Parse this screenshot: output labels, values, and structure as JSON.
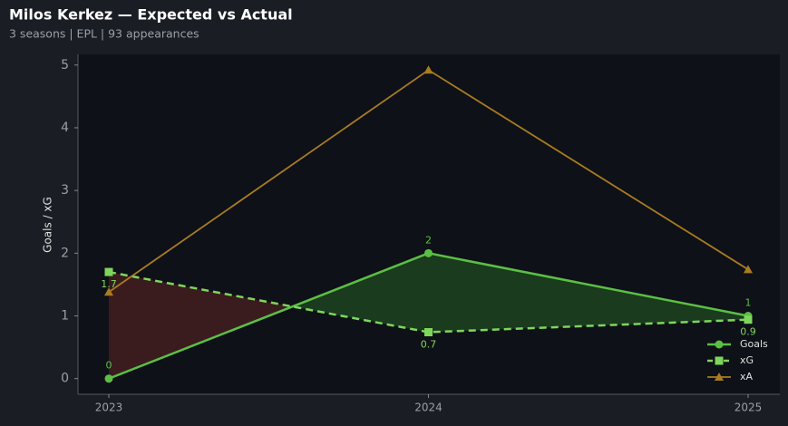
{
  "chart_data": {
    "type": "line",
    "title": "Milos Kerkez — Expected vs Actual",
    "subtitle": "3 seasons | EPL | 93 appearances",
    "y_label": "Goals / xG",
    "categories": [
      "2023",
      "2024",
      "2025"
    ],
    "series": [
      {
        "name": "Goals",
        "color": "#5cbf45",
        "marker": "circle",
        "dash": false,
        "width": 2.5,
        "values": [
          0,
          2,
          1
        ],
        "value_labels": [
          "0",
          "2",
          "1"
        ],
        "label_pos": "above"
      },
      {
        "name": "xG",
        "color": "#7ed65c",
        "marker": "square",
        "dash": true,
        "width": 2.5,
        "values": [
          1.7,
          0.74,
          0.94
        ],
        "value_labels": [
          "1.7",
          "0.7",
          "0.9"
        ],
        "label_pos": "below"
      },
      {
        "name": "xA",
        "color": "#a97b22",
        "marker": "triangle",
        "dash": false,
        "width": 1.8,
        "values": [
          1.38,
          4.92,
          1.74
        ]
      }
    ],
    "fill_between": {
      "above_color": "#1f4a22",
      "below_color": "#4a1f22"
    },
    "ylim": [
      -0.25,
      5.17
    ],
    "yticks": [
      0,
      1,
      2,
      3,
      4,
      5
    ],
    "grid": false,
    "legend": "lower right"
  }
}
